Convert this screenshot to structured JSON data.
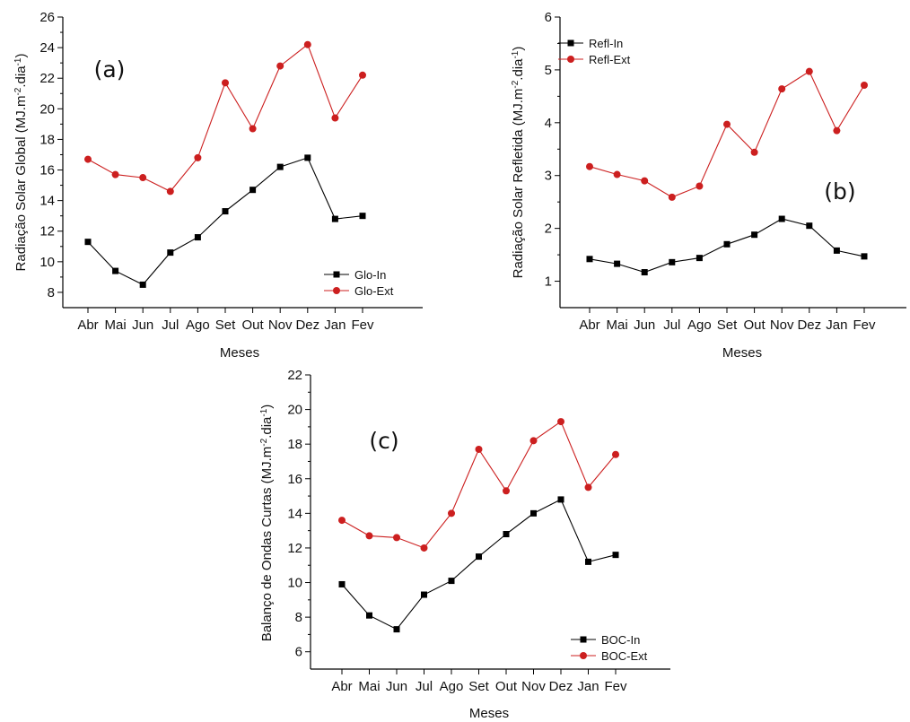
{
  "chart_data": [
    {
      "type": "line",
      "panel_label": "(a)",
      "categories": [
        "Abr",
        "Mai",
        "Jun",
        "Jul",
        "Ago",
        "Set",
        "Out",
        "Nov",
        "Dez",
        "Jan",
        "Fev"
      ],
      "series": [
        {
          "name": "Glo-In",
          "marker": "square",
          "color": "#000000",
          "values": [
            11.3,
            9.4,
            8.5,
            10.6,
            11.6,
            13.3,
            14.7,
            16.2,
            16.8,
            12.8,
            13.0
          ]
        },
        {
          "name": "Glo-Ext",
          "marker": "circle",
          "color": "#cc1f1f",
          "values": [
            16.7,
            15.7,
            15.5,
            14.6,
            16.8,
            21.7,
            18.7,
            22.8,
            24.2,
            19.4,
            22.2
          ]
        }
      ],
      "xlabel": "Meses",
      "ylabel_main": "Radiação Solar Global (MJ.m",
      "ylabel_sup1": "-2",
      "ylabel_mid": ".dia",
      "ylabel_sup2": "-1",
      "ylabel_end": ")",
      "ylim": [
        7,
        26
      ],
      "yticks": [
        8,
        10,
        12,
        14,
        16,
        18,
        20,
        22,
        24,
        26
      ],
      "legend_position": "bottom-right",
      "grid": false
    },
    {
      "type": "line",
      "panel_label": "(b)",
      "categories": [
        "Abr",
        "Mai",
        "Jun",
        "Jul",
        "Ago",
        "Set",
        "Out",
        "Nov",
        "Dez",
        "Jan",
        "Fev"
      ],
      "series": [
        {
          "name": "Refl-In",
          "marker": "square",
          "color": "#000000",
          "values": [
            1.42,
            1.33,
            1.17,
            1.36,
            1.44,
            1.7,
            1.88,
            2.18,
            2.05,
            1.58,
            1.47
          ]
        },
        {
          "name": "Refl-Ext",
          "marker": "circle",
          "color": "#cc1f1f",
          "values": [
            3.17,
            3.02,
            2.9,
            2.59,
            2.8,
            3.97,
            3.44,
            4.64,
            4.97,
            3.85,
            4.71
          ]
        }
      ],
      "xlabel": "Meses",
      "ylabel_main": "Radiação Solar Refletida (MJ.m",
      "ylabel_sup1": "-2",
      "ylabel_mid": ".dia",
      "ylabel_sup2": "-1",
      "ylabel_end": ")",
      "ylim": [
        0.5,
        6
      ],
      "yticks": [
        1,
        2,
        3,
        4,
        5,
        6
      ],
      "legend_position": "top-left",
      "grid": false
    },
    {
      "type": "line",
      "panel_label": "(c)",
      "categories": [
        "Abr",
        "Mai",
        "Jun",
        "Jul",
        "Ago",
        "Set",
        "Out",
        "Nov",
        "Dez",
        "Jan",
        "Fev"
      ],
      "series": [
        {
          "name": "BOC-In",
          "marker": "square",
          "color": "#000000",
          "values": [
            9.9,
            8.1,
            7.3,
            9.3,
            10.1,
            11.5,
            12.8,
            14.0,
            14.8,
            11.2,
            11.6
          ]
        },
        {
          "name": "BOC-Ext",
          "marker": "circle",
          "color": "#cc1f1f",
          "values": [
            13.6,
            12.7,
            12.6,
            12.0,
            14.0,
            17.7,
            15.3,
            18.2,
            19.3,
            15.5,
            17.4
          ]
        }
      ],
      "xlabel": "Meses",
      "ylabel_main": "Balanço de Ondas Curtas (MJ.m",
      "ylabel_sup1": "-2",
      "ylabel_mid": ".dia",
      "ylabel_sup2": "-1",
      "ylabel_end": ")",
      "ylim": [
        5,
        22
      ],
      "yticks": [
        6,
        8,
        10,
        12,
        14,
        16,
        18,
        20,
        22
      ],
      "legend_position": "bottom-right",
      "grid": false
    }
  ]
}
